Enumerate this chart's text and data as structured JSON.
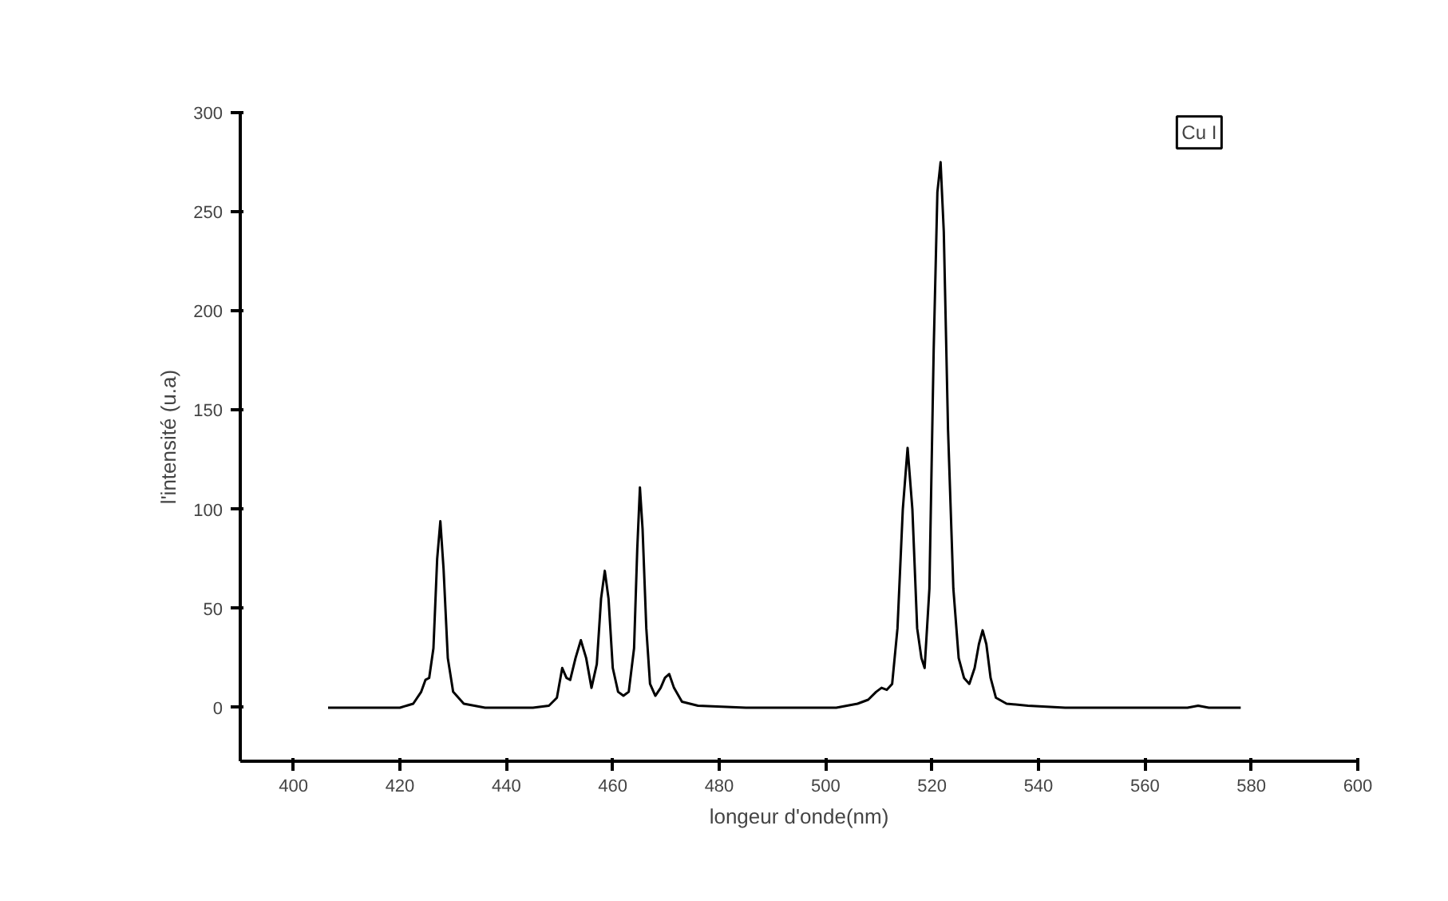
{
  "chart_data": {
    "type": "line",
    "xlabel": "longeur d'onde(nm)",
    "ylabel": "l'intensité (u.a)",
    "annotations": [
      "Cu I"
    ],
    "xlim": [
      390,
      600
    ],
    "ylim": [
      -27,
      300
    ],
    "xticks": [
      400,
      420,
      440,
      460,
      480,
      500,
      520,
      540,
      560,
      580,
      600
    ],
    "yticks": [
      0,
      50,
      100,
      150,
      200,
      250,
      300
    ],
    "grid": false,
    "series": [
      {
        "color": "#000000",
        "x": [
          406.5,
          415,
          420,
          422.5,
          424,
          424.8,
          425.5,
          426.3,
          427,
          427.6,
          428.2,
          429,
          430,
          432,
          436,
          445,
          448,
          449.5,
          450.5,
          451.3,
          452,
          453,
          454,
          455,
          456,
          457,
          457.8,
          458.5,
          459.2,
          460,
          461,
          462,
          463,
          464,
          464.6,
          465.1,
          465.6,
          466.3,
          467,
          468,
          469,
          469.8,
          470.6,
          471.5,
          473,
          476,
          485,
          495,
          502,
          506,
          508,
          509.5,
          510.5,
          511.5,
          512.5,
          513.5,
          514.5,
          515.4,
          516.3,
          517.2,
          518,
          518.6,
          519.5,
          520.3,
          521,
          521.6,
          522.2,
          523,
          524,
          525,
          526,
          527,
          528,
          528.8,
          529.5,
          530.2,
          531,
          532,
          534,
          538,
          545,
          560,
          568,
          570,
          572,
          578
        ],
        "values": [
          0,
          0,
          0,
          2,
          8,
          14,
          15,
          30,
          75,
          94,
          70,
          25,
          8,
          2,
          0,
          0,
          1,
          5,
          20,
          15,
          14,
          25,
          34,
          25,
          10,
          22,
          55,
          69,
          55,
          20,
          8,
          6,
          8,
          30,
          80,
          111,
          90,
          40,
          12,
          6,
          10,
          15,
          17,
          10,
          3,
          1,
          0,
          0,
          0,
          2,
          4,
          8,
          10,
          9,
          12,
          40,
          100,
          131,
          100,
          40,
          25,
          20,
          60,
          180,
          260,
          275,
          240,
          140,
          60,
          25,
          15,
          12,
          20,
          32,
          39,
          32,
          15,
          5,
          2,
          1,
          0,
          0,
          0,
          1,
          0,
          0
        ]
      }
    ]
  }
}
